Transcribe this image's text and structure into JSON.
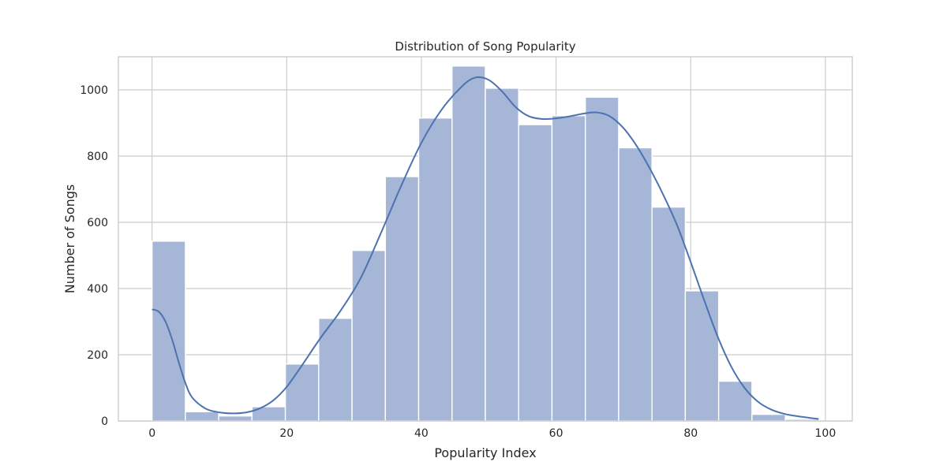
{
  "chart_data": {
    "type": "bar",
    "subtype": "histogram-with-kde",
    "title": "Distribution of Song Popularity",
    "xlabel": "Popularity Index",
    "ylabel": "Number of Songs",
    "xlim": [
      -5,
      104
    ],
    "ylim": [
      0,
      1100
    ],
    "xticks": [
      0,
      20,
      40,
      60,
      80,
      100
    ],
    "yticks": [
      0,
      200,
      400,
      600,
      800,
      1000
    ],
    "grid": true,
    "bar_color": "#a5b6d6",
    "line_color": "#4c72b0",
    "bins": [
      {
        "x0": 0,
        "x1": 4.95,
        "count": 543
      },
      {
        "x0": 4.95,
        "x1": 9.9,
        "count": 28
      },
      {
        "x0": 9.9,
        "x1": 14.85,
        "count": 15
      },
      {
        "x0": 14.85,
        "x1": 19.8,
        "count": 43
      },
      {
        "x0": 19.8,
        "x1": 24.75,
        "count": 172
      },
      {
        "x0": 24.75,
        "x1": 29.7,
        "count": 310
      },
      {
        "x0": 29.7,
        "x1": 34.65,
        "count": 515
      },
      {
        "x0": 34.65,
        "x1": 39.6,
        "count": 738
      },
      {
        "x0": 39.6,
        "x1": 44.55,
        "count": 915
      },
      {
        "x0": 44.55,
        "x1": 49.5,
        "count": 1072
      },
      {
        "x0": 49.5,
        "x1": 54.45,
        "count": 1005
      },
      {
        "x0": 54.45,
        "x1": 59.4,
        "count": 895
      },
      {
        "x0": 59.4,
        "x1": 64.35,
        "count": 922
      },
      {
        "x0": 64.35,
        "x1": 69.3,
        "count": 978
      },
      {
        "x0": 69.3,
        "x1": 74.25,
        "count": 825
      },
      {
        "x0": 74.25,
        "x1": 79.2,
        "count": 646
      },
      {
        "x0": 79.2,
        "x1": 84.15,
        "count": 393
      },
      {
        "x0": 84.15,
        "x1": 89.1,
        "count": 120
      },
      {
        "x0": 89.1,
        "x1": 94.05,
        "count": 20
      },
      {
        "x0": 94.05,
        "x1": 99,
        "count": 5
      }
    ],
    "kde": [
      {
        "x": 0,
        "y": 337
      },
      {
        "x": 1,
        "y": 330
      },
      {
        "x": 2,
        "y": 300
      },
      {
        "x": 3,
        "y": 245
      },
      {
        "x": 4,
        "y": 175
      },
      {
        "x": 5,
        "y": 112
      },
      {
        "x": 6,
        "y": 70
      },
      {
        "x": 8,
        "y": 37
      },
      {
        "x": 10,
        "y": 26
      },
      {
        "x": 12,
        "y": 23
      },
      {
        "x": 14,
        "y": 26
      },
      {
        "x": 16,
        "y": 38
      },
      {
        "x": 18,
        "y": 62
      },
      {
        "x": 20,
        "y": 103
      },
      {
        "x": 22,
        "y": 160
      },
      {
        "x": 25,
        "y": 250
      },
      {
        "x": 28,
        "y": 333
      },
      {
        "x": 31,
        "y": 432
      },
      {
        "x": 34,
        "y": 568
      },
      {
        "x": 37,
        "y": 710
      },
      {
        "x": 40,
        "y": 840
      },
      {
        "x": 43,
        "y": 940
      },
      {
        "x": 46,
        "y": 1010
      },
      {
        "x": 48,
        "y": 1037
      },
      {
        "x": 50,
        "y": 1030
      },
      {
        "x": 52,
        "y": 995
      },
      {
        "x": 54,
        "y": 948
      },
      {
        "x": 56,
        "y": 920
      },
      {
        "x": 58,
        "y": 912
      },
      {
        "x": 60,
        "y": 914
      },
      {
        "x": 62,
        "y": 920
      },
      {
        "x": 64,
        "y": 928
      },
      {
        "x": 66,
        "y": 932
      },
      {
        "x": 68,
        "y": 920
      },
      {
        "x": 70,
        "y": 885
      },
      {
        "x": 72,
        "y": 830
      },
      {
        "x": 74,
        "y": 760
      },
      {
        "x": 76,
        "y": 680
      },
      {
        "x": 78,
        "y": 590
      },
      {
        "x": 80,
        "y": 480
      },
      {
        "x": 82,
        "y": 365
      },
      {
        "x": 84,
        "y": 255
      },
      {
        "x": 86,
        "y": 165
      },
      {
        "x": 88,
        "y": 100
      },
      {
        "x": 90,
        "y": 58
      },
      {
        "x": 92,
        "y": 34
      },
      {
        "x": 94,
        "y": 21
      },
      {
        "x": 96,
        "y": 14
      },
      {
        "x": 99,
        "y": 6
      }
    ]
  }
}
